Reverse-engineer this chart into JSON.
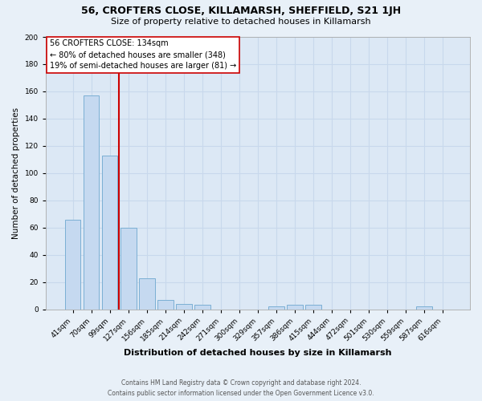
{
  "title": "56, CROFTERS CLOSE, KILLAMARSH, SHEFFIELD, S21 1JH",
  "subtitle": "Size of property relative to detached houses in Killamarsh",
  "xlabel": "Distribution of detached houses by size in Killamarsh",
  "ylabel": "Number of detached properties",
  "bar_labels": [
    "41sqm",
    "70sqm",
    "99sqm",
    "127sqm",
    "156sqm",
    "185sqm",
    "214sqm",
    "242sqm",
    "271sqm",
    "300sqm",
    "329sqm",
    "357sqm",
    "386sqm",
    "415sqm",
    "444sqm",
    "472sqm",
    "501sqm",
    "530sqm",
    "559sqm",
    "587sqm",
    "616sqm"
  ],
  "bar_values": [
    66,
    157,
    113,
    60,
    23,
    7,
    4,
    3,
    0,
    0,
    0,
    2,
    3,
    3,
    0,
    0,
    0,
    0,
    0,
    2,
    0
  ],
  "bar_color": "#c5d9f0",
  "bar_edge_color": "#7bafd4",
  "vline_color": "#cc0000",
  "vline_pos": 2.5,
  "annotation_line1": "56 CROFTERS CLOSE: 134sqm",
  "annotation_line2": "← 80% of detached houses are smaller (348)",
  "annotation_line3": "19% of semi-detached houses are larger (81) →",
  "annotation_box_color": "#ffffff",
  "annotation_box_edgecolor": "#cc0000",
  "ylim": [
    0,
    200
  ],
  "yticks": [
    0,
    20,
    40,
    60,
    80,
    100,
    120,
    140,
    160,
    180,
    200
  ],
  "footer_line1": "Contains HM Land Registry data © Crown copyright and database right 2024.",
  "footer_line2": "Contains public sector information licensed under the Open Government Licence v3.0.",
  "bg_color": "#e8f0f8",
  "plot_bg_color": "#dce8f5",
  "grid_color": "#c8d8ec"
}
